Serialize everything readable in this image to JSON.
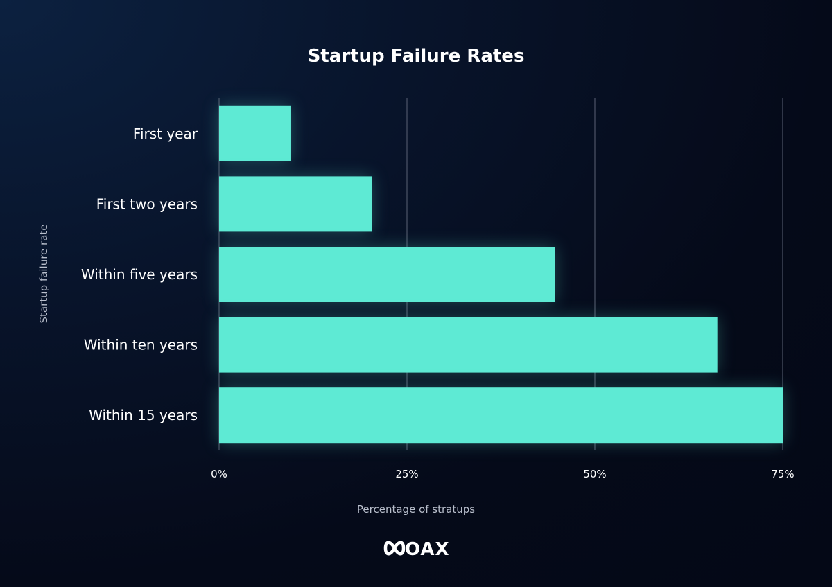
{
  "brand": {
    "logo_text": "COAX",
    "logo_icon": "infinity-icon"
  },
  "colors": {
    "bar": "#5eead4",
    "background": "#050a19",
    "grid": "#5b6275",
    "text": "#ffffff",
    "axis_label": "#b9bfcc"
  },
  "chart_data": {
    "type": "bar",
    "orientation": "horizontal",
    "title": "Startup Failure Rates",
    "xlabel": "Percentage of stratups",
    "ylabel": "Startup failure rate",
    "categories": [
      "First year",
      "First two years",
      "Within five years",
      "Within ten years",
      "Within 15 years"
    ],
    "values": [
      9.5,
      20.3,
      44.7,
      66.3,
      75
    ],
    "xlim": [
      0,
      75
    ],
    "xticks": [
      0,
      25,
      50,
      75
    ],
    "xtick_labels": [
      "0%",
      "25%",
      "50%",
      "75%"
    ],
    "grid": "vertical",
    "legend": "none"
  }
}
